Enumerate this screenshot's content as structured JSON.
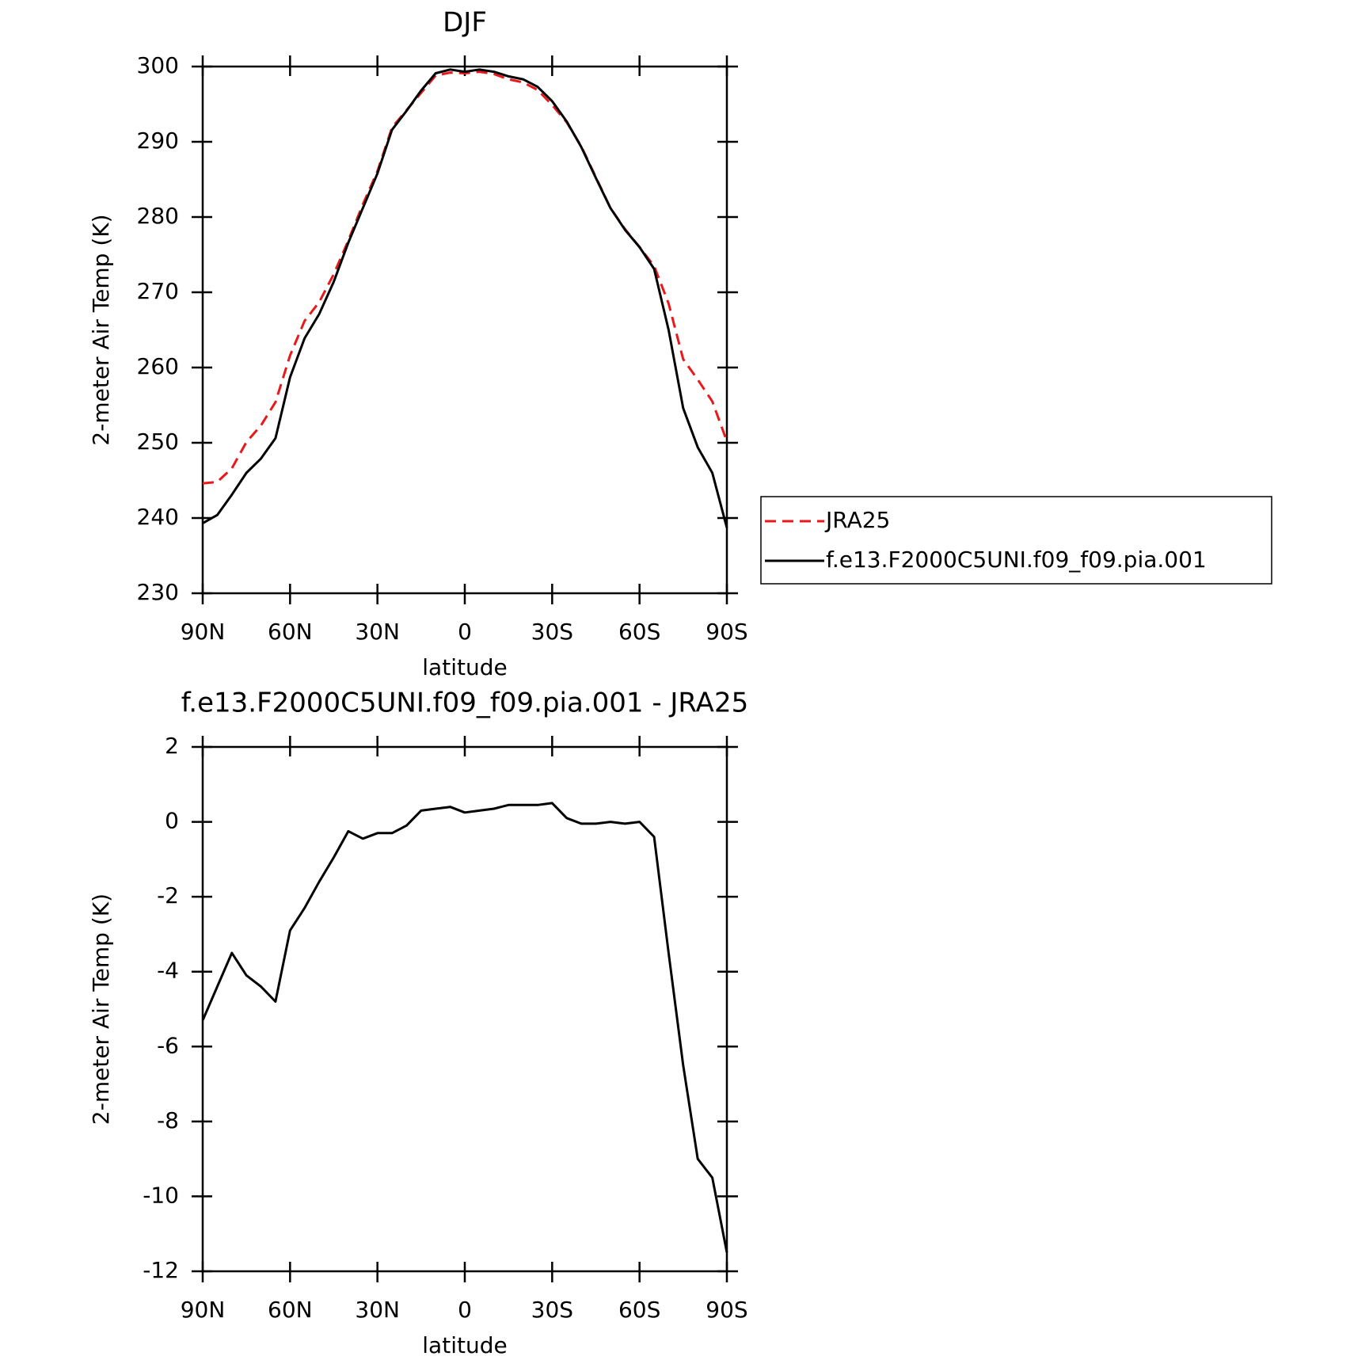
{
  "chart_data": [
    {
      "type": "line",
      "title": "DJF",
      "xlabel": "latitude",
      "ylabel": "2-meter Air Temp (K)",
      "x": [
        90,
        85,
        80,
        75,
        70,
        65,
        60,
        55,
        50,
        45,
        40,
        35,
        30,
        25,
        20,
        15,
        10,
        5,
        0,
        -5,
        -10,
        -15,
        -20,
        -25,
        -30,
        -35,
        -40,
        -45,
        -50,
        -55,
        -60,
        -65,
        -70,
        -75,
        -80,
        -85,
        -90
      ],
      "series": [
        {
          "name": "JRA25",
          "color": "#e8191b",
          "style": "dashed",
          "values": [
            244.6,
            244.8,
            246.6,
            250.1,
            252.3,
            255.4,
            261.6,
            266.2,
            268.7,
            272.4,
            276.9,
            281.7,
            286.1,
            291.9,
            294.2,
            296.5,
            298.8,
            299.2,
            299.1,
            299.3,
            299.0,
            298.3,
            297.9,
            296.9,
            294.9,
            292.6,
            289.4,
            285.3,
            281.2,
            278.4,
            276.0,
            273.5,
            268.5,
            261.1,
            258.4,
            255.5,
            250.2
          ]
        },
        {
          "name": "f.e13.F2000C5UNI.f09_f09.pia.001",
          "color": "#000000",
          "style": "solid",
          "values": [
            239.3,
            240.4,
            243.1,
            246.0,
            247.9,
            250.6,
            258.7,
            263.9,
            267.1,
            271.4,
            276.6,
            281.2,
            285.8,
            291.6,
            294.1,
            296.8,
            299.1,
            299.6,
            299.3,
            299.6,
            299.3,
            298.7,
            298.3,
            297.3,
            295.4,
            292.7,
            289.3,
            285.2,
            281.2,
            278.3,
            276.0,
            273.1,
            265.0,
            254.6,
            249.4,
            246.0,
            238.7
          ]
        }
      ],
      "xlim": [
        90,
        -90
      ],
      "xticks": [
        {
          "value": 90,
          "label": "90N"
        },
        {
          "value": 60,
          "label": "60N"
        },
        {
          "value": 30,
          "label": "30N"
        },
        0,
        {
          "value": -30,
          "label": "30S"
        },
        {
          "value": -60,
          "label": "60S"
        },
        {
          "value": -90,
          "label": "90S"
        }
      ],
      "ylim": [
        230,
        300
      ],
      "yticks": [
        230,
        240,
        250,
        260,
        270,
        280,
        290,
        300
      ],
      "legend": "right"
    },
    {
      "type": "line",
      "title": "f.e13.F2000C5UNI.f09_f09.pia.001 - JRA25",
      "xlabel": "latitude",
      "ylabel": "2-meter Air Temp (K)",
      "x": [
        90,
        85,
        80,
        75,
        70,
        65,
        60,
        55,
        50,
        45,
        40,
        35,
        30,
        25,
        20,
        15,
        10,
        5,
        0,
        -5,
        -10,
        -15,
        -20,
        -25,
        -30,
        -35,
        -40,
        -45,
        -50,
        -55,
        -60,
        -65,
        -70,
        -75,
        -80,
        -85,
        -90
      ],
      "values": [
        -5.3,
        -4.4,
        -3.5,
        -4.1,
        -4.4,
        -4.8,
        -2.9,
        -2.3,
        -1.6,
        -0.95,
        -0.25,
        -0.45,
        -0.3,
        -0.3,
        -0.1,
        0.3,
        0.35,
        0.4,
        0.25,
        0.3,
        0.35,
        0.45,
        0.45,
        0.45,
        0.5,
        0.1,
        -0.05,
        -0.05,
        0,
        -0.05,
        0,
        -0.4,
        -3.5,
        -6.5,
        -9.0,
        -9.5,
        -11.5
      ],
      "color": "#000000",
      "xlim": [
        90,
        -90
      ],
      "xticks": [
        {
          "value": 90,
          "label": "90N"
        },
        {
          "value": 60,
          "label": "60N"
        },
        {
          "value": 30,
          "label": "30N"
        },
        0,
        {
          "value": -30,
          "label": "30S"
        },
        {
          "value": -60,
          "label": "60S"
        },
        {
          "value": -90,
          "label": "90S"
        }
      ],
      "ylim": [
        -12,
        2
      ],
      "yticks": [
        -12,
        -10,
        -8,
        -6,
        -4,
        -2,
        0,
        2
      ]
    }
  ]
}
